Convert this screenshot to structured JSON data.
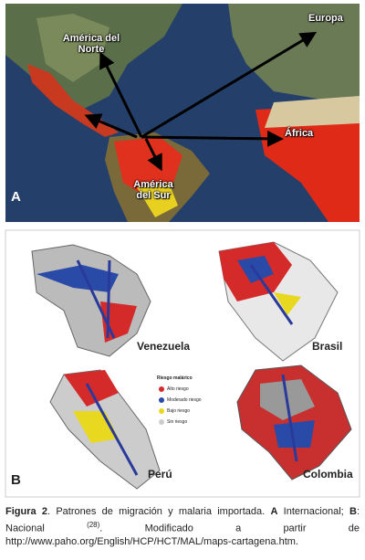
{
  "panel_a": {
    "letter": "A",
    "labels": {
      "north_america": "América del Norte",
      "europe": "Europa",
      "africa": "África",
      "south_america": "América del Sur"
    }
  },
  "panel_b": {
    "letter": "B",
    "countries": [
      "Venezuela",
      "Brasil",
      "Perú",
      "Colombia"
    ],
    "legend": {
      "title": "Riesgo malárico",
      "items": [
        "Alto riesgo",
        "Moderado riesgo",
        "Bajo riesgo",
        "Sin riesgo"
      ]
    }
  },
  "caption": {
    "label": "Figura 2",
    "text1": ". Patrones de migración y malaria importada. ",
    "a": "A",
    "text2": " Internacional; ",
    "b": "B",
    "text3": ": Nacional ",
    "ref": "(28)",
    "text4": ". Modificado a partir de http://www.paho.org/English/HCP/HCT/MAL/maps-cartagena.htm."
  }
}
